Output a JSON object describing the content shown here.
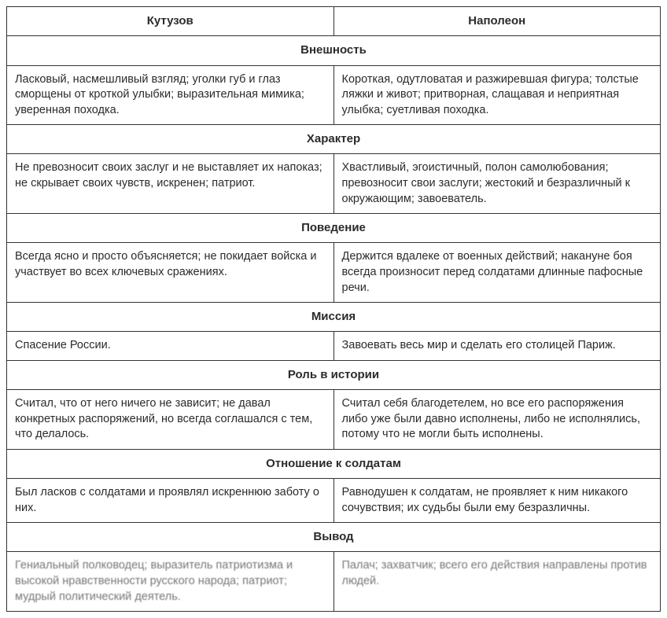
{
  "table": {
    "header": {
      "left": "Кутузов",
      "right": "Наполеон"
    },
    "sections": [
      {
        "title": "Внешность",
        "left": "Ласковый, насмешливый взгляд; уголки губ и глаз сморщены от кроткой улыбки; выразительная мимика; уверенная походка.",
        "right": "Короткая, одутловатая и разжиревшая фигура; толстые ляжки и живот; притворная, слащавая и неприятная улыбка; суетливая походка."
      },
      {
        "title": "Характер",
        "left": "Не превозносит своих заслуг и не выставляет их напоказ; не скрывает своих чувств, искренен; патриот.",
        "right": "Хвастливый, эгоистичный, полон самолюбования; превозносит свои заслуги; жестокий и безразличный к окружающим; завоеватель."
      },
      {
        "title": "Поведение",
        "left": "Всегда ясно и просто объясняется; не покидает войска и участвует во всех ключевых сражениях.",
        "right": "Держится вдалеке от военных действий; накануне боя всегда произносит перед солдатами длинные пафосные речи."
      },
      {
        "title": "Миссия",
        "left": "Спасение России.",
        "right": "Завоевать весь мир и сделать его столицей Париж."
      },
      {
        "title": "Роль в истории",
        "left": "Считал, что от него ничего не зависит; не давал конкретных распоряжений, но всегда соглашался с тем, что делалось.",
        "right": "Считал себя благодетелем, но все его распоряжения либо уже были давно исполнены, либо не исполнялись, потому что не могли быть исполнены."
      },
      {
        "title": "Отношение к солдатам",
        "left": "Был ласков с солдатами и проявлял искреннюю заботу о них.",
        "right": "Равнодушен к солдатам, не проявляет к ним никакого сочувствия; их судьбы были ему безразличны."
      },
      {
        "title": "Вывод",
        "left": "Гениальный полководец; выразитель патриотизма и высокой нравственности русского народа; патриот; мудрый политический деятель.",
        "right": "Палач; захватчик; всего его действия направлены против людей.",
        "conclusion": true
      }
    ]
  }
}
